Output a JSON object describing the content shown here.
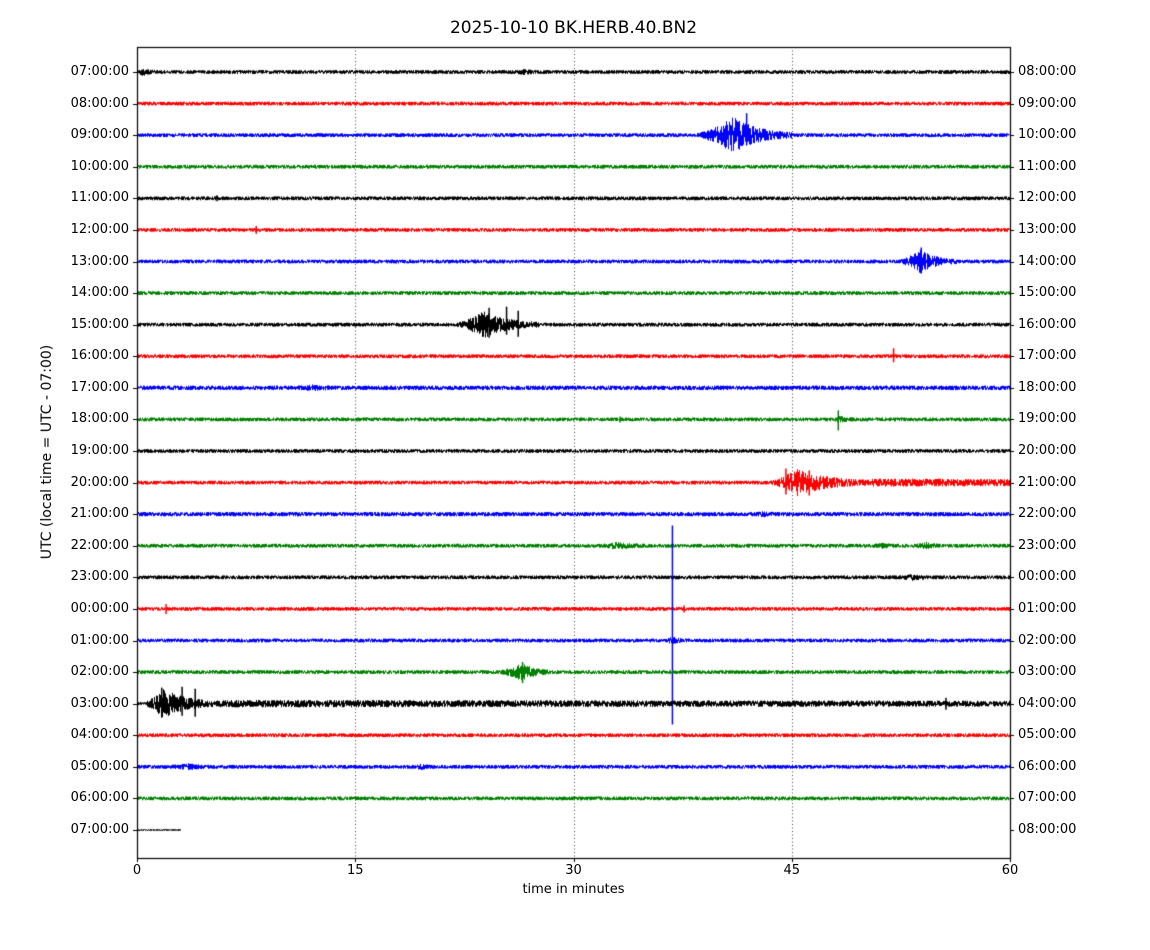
{
  "chart_data": {
    "type": "line",
    "subtype": "helicorder-seismogram",
    "title": "2025-10-10 BK.HERB.40.BN2",
    "xlabel": "time in minutes",
    "ylabel": "UTC (local time = UTC - 07:00)",
    "xlim": [
      0,
      60
    ],
    "x_ticks": [
      0,
      15,
      30,
      45,
      60
    ],
    "grid_minutes": [
      15,
      30,
      45
    ],
    "grid_on": true,
    "colors": {
      "frame": "#000000",
      "grid": "#444444",
      "background": "#ffffff",
      "trace_cycle": [
        "#000000",
        "#ff0000",
        "#0000ff",
        "#008000"
      ]
    },
    "rows": [
      {
        "left_label": "07:00:00",
        "right_label": "08:00:00",
        "color": "#000000",
        "duration": 60,
        "noise": 2.0,
        "events": [
          {
            "type": "burst",
            "start": 0,
            "peak": 0.4,
            "end": 1.2,
            "amp": 2.5
          },
          {
            "type": "burst",
            "start": 26,
            "peak": 26.6,
            "end": 27.4,
            "amp": 1.3
          }
        ]
      },
      {
        "left_label": "08:00:00",
        "right_label": "09:00:00",
        "color": "#ff0000",
        "duration": 60,
        "noise": 2.0,
        "events": []
      },
      {
        "left_label": "09:00:00",
        "right_label": "10:00:00",
        "color": "#0000ff",
        "duration": 60,
        "noise": 2.0,
        "events": [
          {
            "type": "burst",
            "start": 38.3,
            "peak": 41,
            "end": 45,
            "amp": 17
          },
          {
            "type": "spike",
            "t": 41.9,
            "up": 22,
            "down": 10
          }
        ]
      },
      {
        "left_label": "10:00:00",
        "right_label": "11:00:00",
        "color": "#008000",
        "duration": 60,
        "noise": 2.0,
        "events": []
      },
      {
        "left_label": "11:00:00",
        "right_label": "12:00:00",
        "color": "#000000",
        "duration": 60,
        "noise": 2.0,
        "events": [
          {
            "type": "spike",
            "t": 5.5,
            "up": 3,
            "down": 3
          }
        ]
      },
      {
        "left_label": "12:00:00",
        "right_label": "13:00:00",
        "color": "#ff0000",
        "duration": 60,
        "noise": 2.0,
        "events": [
          {
            "type": "spike",
            "t": 8.2,
            "up": 4,
            "down": 4
          }
        ]
      },
      {
        "left_label": "13:00:00",
        "right_label": "14:00:00",
        "color": "#0000ff",
        "duration": 60,
        "noise": 2.0,
        "events": [
          {
            "type": "burst",
            "start": 52.3,
            "peak": 53.8,
            "end": 56.3,
            "amp": 10
          },
          {
            "type": "spike",
            "t": 53.9,
            "up": 14,
            "down": 12
          }
        ]
      },
      {
        "left_label": "14:00:00",
        "right_label": "15:00:00",
        "color": "#008000",
        "duration": 60,
        "noise": 2.0,
        "events": []
      },
      {
        "left_label": "15:00:00",
        "right_label": "16:00:00",
        "color": "#000000",
        "duration": 60,
        "noise": 2.0,
        "events": [
          {
            "type": "burst",
            "start": 21.8,
            "peak": 23.8,
            "end": 27.6,
            "amp": 12
          },
          {
            "type": "spike",
            "t": 24.2,
            "up": 17,
            "down": 13
          },
          {
            "type": "spike",
            "t": 25.4,
            "up": 18,
            "down": 10
          },
          {
            "type": "spike",
            "t": 26.2,
            "up": 14,
            "down": 12
          }
        ]
      },
      {
        "left_label": "16:00:00",
        "right_label": "17:00:00",
        "color": "#ff0000",
        "duration": 60,
        "noise": 2.0,
        "events": [
          {
            "type": "spike",
            "t": 52.0,
            "up": 8,
            "down": 6
          }
        ]
      },
      {
        "left_label": "17:00:00",
        "right_label": "18:00:00",
        "color": "#0000ff",
        "duration": 60,
        "noise": 2.3,
        "events": [
          {
            "type": "burst",
            "start": 11,
            "peak": 12,
            "end": 13.5,
            "amp": 1.3
          }
        ]
      },
      {
        "left_label": "18:00:00",
        "right_label": "19:00:00",
        "color": "#008000",
        "duration": 60,
        "noise": 2.0,
        "events": [
          {
            "type": "spike",
            "t": 33.2,
            "up": 3,
            "down": 3
          },
          {
            "type": "burst",
            "start": 47.8,
            "peak": 48.2,
            "end": 49.2,
            "amp": 2
          },
          {
            "type": "spike",
            "t": 48.2,
            "up": 9,
            "down": 11
          }
        ]
      },
      {
        "left_label": "19:00:00",
        "right_label": "20:00:00",
        "color": "#000000",
        "duration": 60,
        "noise": 2.0,
        "events": []
      },
      {
        "left_label": "20:00:00",
        "right_label": "21:00:00",
        "color": "#ff0000",
        "duration": 60,
        "noise": 2.0,
        "events": [
          {
            "type": "burst",
            "start": 43.4,
            "peak": 45.3,
            "end": 50.5,
            "amp": 12
          },
          {
            "type": "spike",
            "t": 44.6,
            "up": 14,
            "down": 12
          },
          {
            "type": "spike",
            "t": 46.2,
            "up": 12,
            "down": 13
          },
          {
            "type": "coda",
            "start": 50.5,
            "end": 60,
            "amp0": 2.2,
            "amp1": 1.6
          }
        ]
      },
      {
        "left_label": "21:00:00",
        "right_label": "22:00:00",
        "color": "#0000ff",
        "duration": 60,
        "noise": 2.2,
        "events": [
          {
            "type": "burst",
            "start": 42.4,
            "peak": 43,
            "end": 44,
            "amp": 1.2
          }
        ]
      },
      {
        "left_label": "22:00:00",
        "right_label": "23:00:00",
        "color": "#008000",
        "duration": 60,
        "noise": 2.0,
        "events": [
          {
            "type": "burst",
            "start": 31.8,
            "peak": 33,
            "end": 34.8,
            "amp": 2.4
          },
          {
            "type": "burst",
            "start": 50.6,
            "peak": 51.2,
            "end": 52,
            "amp": 1.8
          },
          {
            "type": "burst",
            "start": 53.4,
            "peak": 54.2,
            "end": 55.2,
            "amp": 2.2
          }
        ]
      },
      {
        "left_label": "23:00:00",
        "right_label": "00:00:00",
        "color": "#000000",
        "duration": 60,
        "noise": 2.0,
        "events": [
          {
            "type": "burst",
            "start": 52.4,
            "peak": 53.3,
            "end": 54.5,
            "amp": 1.8
          }
        ]
      },
      {
        "left_label": "00:00:00",
        "right_label": "01:00:00",
        "color": "#ff0000",
        "duration": 60,
        "noise": 2.0,
        "events": [
          {
            "type": "spike",
            "t": 2.0,
            "up": 5,
            "down": 5
          },
          {
            "type": "spike",
            "t": 37.6,
            "up": 3.5,
            "down": 3.5
          }
        ]
      },
      {
        "left_label": "01:00:00",
        "right_label": "02:00:00",
        "color": "#0000ff",
        "duration": 60,
        "noise": 2.0,
        "events": [
          {
            "type": "spike",
            "t": 36.8,
            "up": 115,
            "down": 84
          },
          {
            "type": "burst",
            "start": 36.3,
            "peak": 36.8,
            "end": 37.6,
            "amp": 2.5
          }
        ]
      },
      {
        "left_label": "02:00:00",
        "right_label": "03:00:00",
        "color": "#008000",
        "duration": 60,
        "noise": 2.0,
        "events": [
          {
            "type": "burst",
            "start": 24.8,
            "peak": 26.5,
            "end": 28.3,
            "amp": 7.5
          },
          {
            "type": "spike",
            "t": 26.5,
            "up": 10,
            "down": 11
          }
        ]
      },
      {
        "left_label": "03:00:00",
        "right_label": "04:00:00",
        "color": "#000000",
        "duration": 60,
        "noise": 2.0,
        "events": [
          {
            "type": "burst",
            "start": 0.4,
            "peak": 1.8,
            "end": 5.7,
            "amp": 13
          },
          {
            "type": "spike",
            "t": 1.7,
            "up": 16,
            "down": 14
          },
          {
            "type": "spike",
            "t": 3.1,
            "up": 17,
            "down": 12
          },
          {
            "type": "spike",
            "t": 4.0,
            "up": 15,
            "down": 13
          },
          {
            "type": "coda",
            "start": 5.7,
            "end": 60,
            "amp0": 1.8,
            "amp1": 1.0
          },
          {
            "type": "spike",
            "t": 55.6,
            "up": 6,
            "down": 6
          }
        ]
      },
      {
        "left_label": "04:00:00",
        "right_label": "05:00:00",
        "color": "#ff0000",
        "duration": 60,
        "noise": 2.0,
        "events": []
      },
      {
        "left_label": "05:00:00",
        "right_label": "06:00:00",
        "color": "#0000ff",
        "duration": 60,
        "noise": 2.0,
        "events": [
          {
            "type": "burst",
            "start": 2,
            "peak": 3.5,
            "end": 5,
            "amp": 1.6
          },
          {
            "type": "spike",
            "t": 3.8,
            "up": 3,
            "down": 3
          },
          {
            "type": "burst",
            "start": 19,
            "peak": 19.5,
            "end": 20.2,
            "amp": 1.4
          }
        ]
      },
      {
        "left_label": "06:00:00",
        "right_label": "07:00:00",
        "color": "#008000",
        "duration": 60,
        "noise": 2.0,
        "events": []
      },
      {
        "left_label": "07:00:00",
        "right_label": "08:00:00",
        "color": "#000000",
        "duration": 3,
        "noise": 0.9,
        "events": []
      }
    ]
  }
}
